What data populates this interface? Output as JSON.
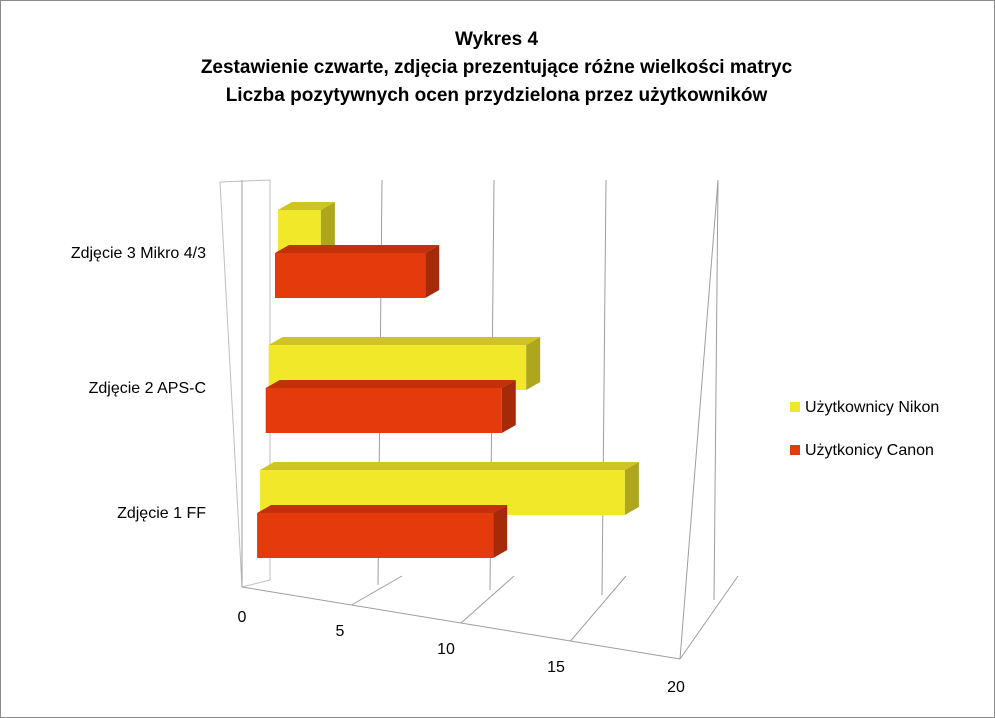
{
  "chart_data": {
    "type": "bar",
    "orientation": "horizontal",
    "style": "3d",
    "title": "Wykres 4",
    "subtitle": [
      "Zestawienie czwarte, zdjęcia prezentujące różne wielkości matryc",
      "Liczba pozytywnych ocen przydzielona przez użytkowników"
    ],
    "categories": [
      "Zdjęcie 1 FF",
      "Zdjęcie 2 APS-C",
      "Zdjęcie 3 Mikro 4/3"
    ],
    "series": [
      {
        "name": "Użytkownicy Nikon",
        "values": [
          17,
          12,
          2
        ],
        "color": "#f2e82a"
      },
      {
        "name": "Użytkonicy Canon",
        "values": [
          11,
          11,
          7
        ],
        "color": "#e53a0c"
      }
    ],
    "xticks": [
      "0",
      "5",
      "10",
      "15",
      "20"
    ],
    "xlim": [
      0,
      20
    ],
    "grid": true,
    "legend": "right"
  }
}
